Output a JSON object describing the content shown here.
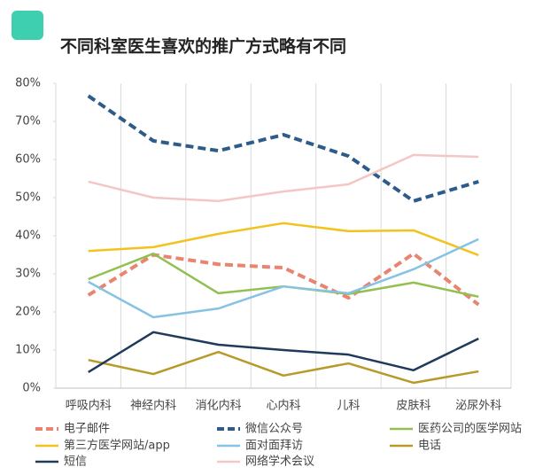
{
  "chart_data": {
    "type": "line",
    "title": "不同科室医生喜欢的推广方式略有不同",
    "categories": [
      "呼吸内科",
      "神经内科",
      "消化内科",
      "心内科",
      "儿科",
      "皮肤科",
      "泌尿外科"
    ],
    "ylim": [
      0,
      80
    ],
    "yticks": [
      {
        "value": 0,
        "label": "0%"
      },
      {
        "value": 10,
        "label": "10%"
      },
      {
        "value": 20,
        "label": "20%"
      },
      {
        "value": 30,
        "label": "30%"
      },
      {
        "value": 40,
        "label": "40%"
      },
      {
        "value": 50,
        "label": "50%"
      },
      {
        "value": 60,
        "label": "60%"
      },
      {
        "value": 70,
        "label": "70%"
      },
      {
        "value": 80,
        "label": "80%"
      }
    ],
    "series": [
      {
        "name": "电子邮件",
        "color": "#e8846f",
        "dashed": true,
        "values": [
          24.4,
          35,
          32.5,
          31.6,
          23.7,
          35.3,
          21.9
        ]
      },
      {
        "name": "微信公众号",
        "color": "#2e5c8a",
        "dashed": true,
        "values": [
          76.7,
          64.9,
          62.3,
          66.5,
          60.9,
          49.1,
          54.2
        ]
      },
      {
        "name": "医药公司的医学网站",
        "color": "#92c050",
        "values": [
          28.6,
          35.3,
          24.9,
          26.7,
          24.7,
          27.7,
          24.0
        ]
      },
      {
        "name": "第三方医学网站/app",
        "color": "#f2c31e",
        "values": [
          36,
          37,
          40.5,
          43.3,
          41.2,
          41.4,
          34.9
        ]
      },
      {
        "name": "面对面拜访",
        "color": "#86c3e3",
        "values": [
          27.9,
          18.6,
          20.9,
          26.7,
          24.9,
          31.2,
          39.1
        ]
      },
      {
        "name": "电话",
        "color": "#b89a2a",
        "values": [
          7.4,
          3.7,
          9.5,
          3.3,
          6.5,
          1.4,
          4.4
        ]
      },
      {
        "name": "短信",
        "color": "#1f3a5a",
        "values": [
          4.2,
          14.7,
          11.4,
          10,
          8.8,
          4.7,
          13
        ]
      },
      {
        "name": "网络学术会议",
        "color": "#f4c6c4",
        "values": [
          54.2,
          50,
          49.1,
          51.6,
          53.5,
          61.2,
          60.7
        ]
      }
    ]
  }
}
